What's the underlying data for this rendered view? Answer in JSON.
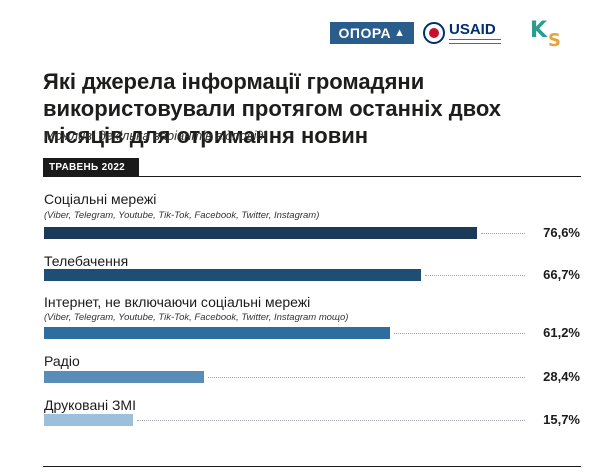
{
  "logos": {
    "opora": "ОПОРА",
    "usaid": "USAID"
  },
  "title": "Які джерела інформації громадяни використовували протягом останніх двох місяців для отримання новин",
  "subtitle": "Можливі декілька варіантів відповіді",
  "period": "ТРАВЕНЬ 2022",
  "chart_data": {
    "type": "bar",
    "orientation": "horizontal",
    "title": "Які джерела інформації громадяни використовували протягом останніх двох місяців для отримання новин",
    "subtitle": "Можливі декілька варіантів відповіді",
    "xlim": [
      0,
      100
    ],
    "grid": false,
    "categories": [
      "Соціальні мережі",
      "Телебачення",
      "Інтернет, не включаючи соціальні мережі",
      "Радіо",
      "Друковані ЗМІ"
    ],
    "notes": [
      "(Viber, Telegram, Youtube, Tik-Tok, Facebook, Twitter, Instagram)",
      "",
      "(Viber, Telegram, Youtube, Tik-Tok, Facebook, Twitter, Instagram тощо)",
      "",
      ""
    ],
    "values": [
      76.6,
      66.7,
      61.2,
      28.4,
      15.7
    ],
    "value_labels": [
      "76,6%",
      "66,7%",
      "61,2%",
      "28,4%",
      "15,7%"
    ],
    "colors": [
      "#1b3a57",
      "#1e4e73",
      "#2d6e9e",
      "#5a8cb8",
      "#9cbfdb"
    ]
  }
}
